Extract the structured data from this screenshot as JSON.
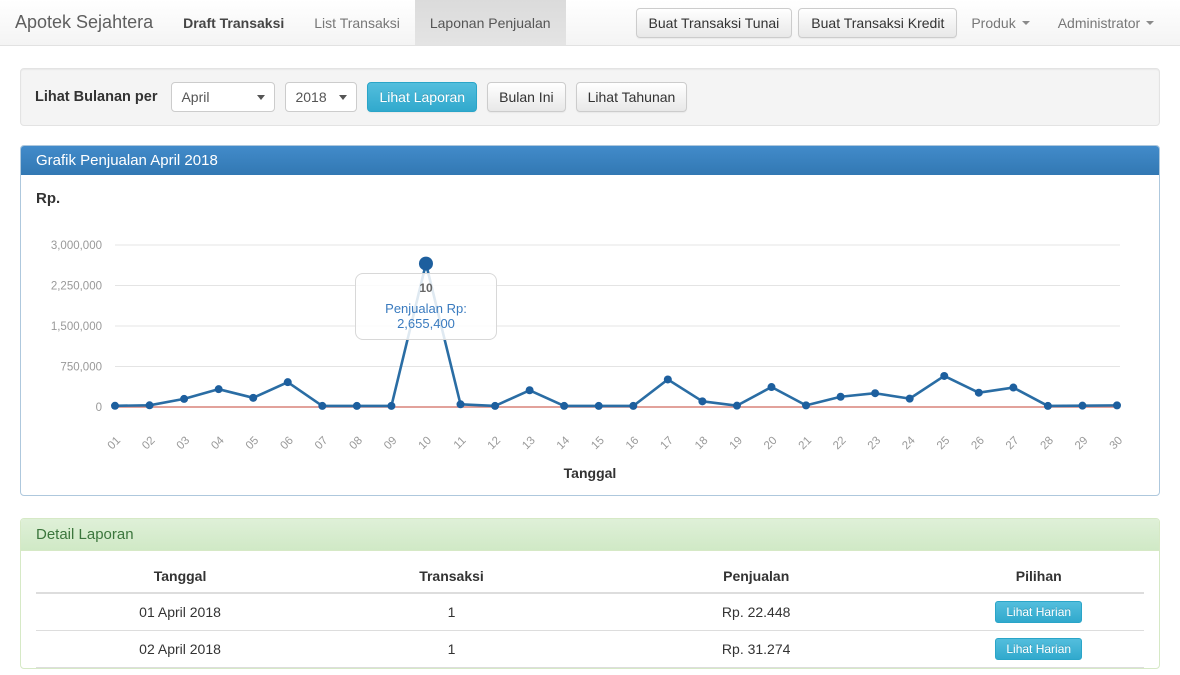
{
  "navbar": {
    "brand": "Apotek Sejahtera",
    "items": [
      {
        "label": "Draft Transaksi",
        "active": false
      },
      {
        "label": "List Transaksi",
        "active": false
      },
      {
        "label": "Laponan Penjualan",
        "active": true
      }
    ],
    "buttons": [
      {
        "label": "Buat Transaksi Tunai"
      },
      {
        "label": "Buat Transaksi Kredit"
      }
    ],
    "dropdowns": [
      {
        "label": "Produk"
      },
      {
        "label": "Administrator"
      }
    ]
  },
  "filter": {
    "label": "Lihat Bulanan per",
    "month_selected": "April",
    "year_selected": "2018",
    "view_report_label": "Lihat Laporan",
    "this_month_label": "Bulan Ini",
    "yearly_label": "Lihat Tahunan"
  },
  "chart_panel": {
    "title": "Grafik Penjualan April 2018",
    "y_axis_title": "Rp.",
    "x_axis_title": "Tanggal",
    "tooltip": {
      "title": "10",
      "text": "Penjualan Rp: 2,655,400"
    }
  },
  "chart_data": {
    "type": "line",
    "title": "Grafik Penjualan April 2018",
    "xlabel": "Tanggal",
    "ylabel": "Rp.",
    "x": [
      "01",
      "02",
      "03",
      "04",
      "05",
      "06",
      "07",
      "08",
      "09",
      "10",
      "11",
      "12",
      "13",
      "14",
      "15",
      "16",
      "17",
      "18",
      "19",
      "20",
      "21",
      "22",
      "23",
      "24",
      "25",
      "26",
      "27",
      "28",
      "29",
      "30"
    ],
    "values": [
      22448,
      31274,
      150000,
      330000,
      170000,
      460000,
      20000,
      20000,
      20000,
      2655400,
      50000,
      20000,
      310000,
      20000,
      20000,
      20000,
      510000,
      105000,
      25000,
      370000,
      30000,
      190000,
      255000,
      155000,
      575000,
      265000,
      360000,
      20000,
      25000,
      30000
    ],
    "ylim": [
      0,
      3000000
    ],
    "yticks": [
      0,
      750000,
      1500000,
      2250000,
      3000000
    ],
    "ytick_labels": [
      "0",
      "750,000",
      "1,500,000",
      "2,250,000",
      "3,000,000"
    ],
    "highlight_index": 9,
    "highlight_value_label": "Penjualan Rp: 2,655,400",
    "grid": true,
    "legend": "none",
    "line_color": "#2a6da4",
    "marker_color": "#1d5f9e",
    "baseline_color": "#d9837a",
    "grid_color": "#e4e4e4",
    "tick_color": "#999999"
  },
  "detail_panel": {
    "title": "Detail Laporan",
    "table": {
      "headers": [
        "Tanggal",
        "Transaksi",
        "Penjualan",
        "Pilihan"
      ],
      "rows": [
        {
          "tanggal": "01 April 2018",
          "transaksi": "1",
          "penjualan": "Rp. 22.448",
          "action": "Lihat Harian"
        },
        {
          "tanggal": "02 April 2018",
          "transaksi": "1",
          "penjualan": "Rp. 31.274",
          "action": "Lihat Harian"
        }
      ]
    }
  },
  "colors": {
    "primary": "#428bca",
    "info_button": "#39b3d7",
    "success_bg": "#dff0d8",
    "success_text": "#3c763d",
    "navbar_active_bg": "#e4e4e4"
  }
}
